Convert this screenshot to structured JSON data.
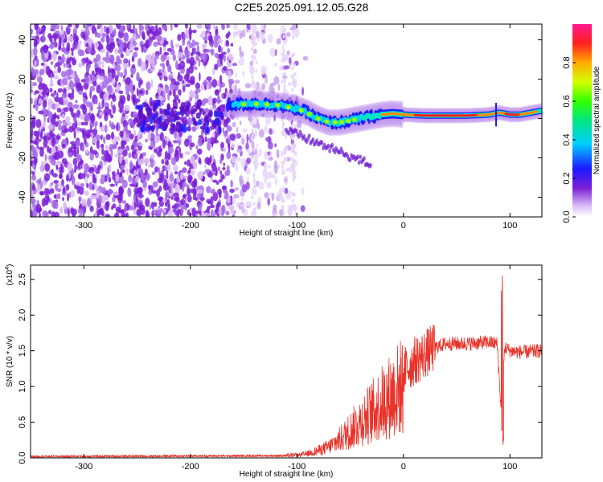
{
  "title": "C2E5.2025.091.12.05.G28",
  "chart_data": [
    {
      "type": "heatmap",
      "xlabel": "Height of straight line (km)",
      "ylabel": "Frequency (Hz)",
      "xlim": [
        -350,
        130
      ],
      "ylim": [
        -50,
        48
      ],
      "xticks": [
        -300,
        -200,
        -100,
        0,
        100
      ],
      "yticks": [
        -40,
        -20,
        0,
        20,
        40
      ],
      "colorbar": {
        "label": "Normalized spectral amplitude",
        "range": [
          0,
          1
        ],
        "ticks": [
          "0.0",
          "0.2",
          "0.4",
          "0.6",
          "0.8"
        ],
        "tick_values": [
          0,
          0.2,
          0.4,
          0.6,
          0.8
        ]
      },
      "ridge": {
        "description": "",
        "x": [
          -165,
          -140,
          -120,
          -100,
          -90,
          -80,
          -70,
          -60,
          -50,
          -40,
          -30,
          -20,
          -10,
          0,
          20,
          40,
          60,
          80,
          90,
          100,
          110,
          130
        ],
        "y": [
          7,
          7.5,
          7,
          5,
          3,
          0,
          -2,
          -2,
          -1,
          0,
          1,
          2,
          2.5,
          2,
          1.5,
          1.5,
          1.5,
          2,
          3,
          2,
          2,
          4
        ]
      }
    },
    {
      "type": "line",
      "xlabel": "Height of straight line (km)",
      "ylabel": "SNR (10 * v/v)",
      "yscale_note": "(x10",
      "yscale_exp": "4",
      "xlim": [
        -350,
        130
      ],
      "ylim": [
        0,
        2.7
      ],
      "xticks": [
        -300,
        -200,
        -100,
        0,
        100
      ],
      "yticks": [
        "0.0",
        "0.5",
        "1.0",
        "1.5",
        "2.0",
        "2.5"
      ],
      "ytick_values": [
        0,
        0.5,
        1.0,
        1.5,
        2.0,
        2.5
      ],
      "series_color": "#e8332a",
      "envelope": {
        "x": [
          -350,
          -110,
          -100,
          -90,
          -80,
          -70,
          -60,
          -50,
          -40,
          -30,
          -20,
          -10,
          0,
          10,
          20,
          30,
          40,
          60,
          80,
          88,
          92,
          95,
          100,
          110,
          130
        ],
        "y": [
          0.02,
          0.03,
          0.04,
          0.07,
          0.12,
          0.18,
          0.3,
          0.45,
          0.6,
          0.75,
          0.9,
          1.05,
          1.2,
          1.35,
          1.45,
          1.55,
          1.6,
          1.6,
          1.62,
          1.6,
          0.6,
          1.55,
          1.5,
          1.48,
          1.5
        ]
      },
      "spike": {
        "x": 93,
        "y_max": 2.65,
        "y_min": 0.12
      }
    }
  ]
}
